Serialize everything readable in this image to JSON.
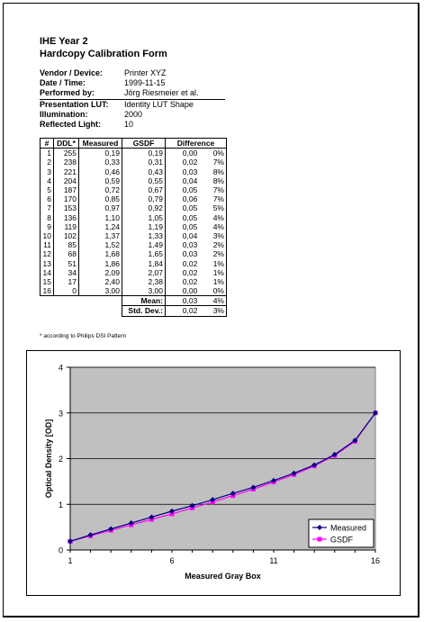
{
  "title_line1": "IHE Year 2",
  "title_line2": "Hardcopy Calibration Form",
  "info": [
    {
      "label": "Vendor / Device:",
      "value": "Printer XYZ"
    },
    {
      "label": "Date / Time:",
      "value": "1999-11-15"
    },
    {
      "label": "Performed by:",
      "value": "Jörg Riesmeier et al."
    },
    {
      "label": "Presentation LUT:",
      "value": "Identity LUT Shape"
    },
    {
      "label": "Illumination:",
      "value": "2000"
    },
    {
      "label": "Reflected Light:",
      "value": "10"
    }
  ],
  "table": {
    "headers": [
      "#",
      "DDL*",
      "Measured",
      "GSDF",
      "Difference"
    ],
    "rows": [
      [
        "1",
        "255",
        "0,19",
        "0,19",
        "0,00",
        "0%"
      ],
      [
        "2",
        "238",
        "0,33",
        "0,31",
        "0,02",
        "7%"
      ],
      [
        "3",
        "221",
        "0,46",
        "0,43",
        "0,03",
        "8%"
      ],
      [
        "4",
        "204",
        "0,59",
        "0,55",
        "0,04",
        "8%"
      ],
      [
        "5",
        "187",
        "0,72",
        "0,67",
        "0,05",
        "7%"
      ],
      [
        "6",
        "170",
        "0,85",
        "0,79",
        "0,06",
        "7%"
      ],
      [
        "7",
        "153",
        "0,97",
        "0,92",
        "0,05",
        "5%"
      ],
      [
        "8",
        "136",
        "1,10",
        "1,05",
        "0,05",
        "4%"
      ],
      [
        "9",
        "119",
        "1,24",
        "1,19",
        "0,05",
        "4%"
      ],
      [
        "10",
        "102",
        "1,37",
        "1,33",
        "0,04",
        "3%"
      ],
      [
        "11",
        "85",
        "1,52",
        "1,49",
        "0,03",
        "2%"
      ],
      [
        "12",
        "68",
        "1,68",
        "1,65",
        "0,03",
        "2%"
      ],
      [
        "13",
        "51",
        "1,86",
        "1,84",
        "0,02",
        "1%"
      ],
      [
        "14",
        "34",
        "2,09",
        "2,07",
        "0,02",
        "1%"
      ],
      [
        "15",
        "17",
        "2,40",
        "2,38",
        "0,02",
        "1%"
      ],
      [
        "16",
        "0",
        "3,00",
        "3,00",
        "0,00",
        "0%"
      ]
    ],
    "mean_label": "Mean:",
    "mean_value": "0,03",
    "mean_pct": "4%",
    "std_label": "Std. Dev.:",
    "std_value": "0,02",
    "std_pct": "3%"
  },
  "footnote": "* according to Philips DSI Pattern",
  "chart_data": {
    "type": "line",
    "x": [
      1,
      2,
      3,
      4,
      5,
      6,
      7,
      8,
      9,
      10,
      11,
      12,
      13,
      14,
      15,
      16
    ],
    "series": [
      {
        "name": "Measured",
        "color": "#000080",
        "marker": "diamond",
        "values": [
          0.19,
          0.33,
          0.46,
          0.59,
          0.72,
          0.85,
          0.97,
          1.1,
          1.24,
          1.37,
          1.52,
          1.68,
          1.86,
          2.09,
          2.4,
          3.0
        ]
      },
      {
        "name": "GSDF",
        "color": "#ff00ff",
        "marker": "square",
        "values": [
          0.19,
          0.31,
          0.43,
          0.55,
          0.67,
          0.79,
          0.92,
          1.05,
          1.19,
          1.33,
          1.49,
          1.65,
          1.84,
          2.07,
          2.38,
          3.0
        ]
      }
    ],
    "xlabel": "Measured Gray Box",
    "ylabel": "Optical Density [OD]",
    "xlim": [
      1,
      16
    ],
    "ylim": [
      0,
      4
    ],
    "xticks": [
      "1",
      "6",
      "11",
      "16"
    ],
    "yticks": [
      "0",
      "1",
      "2",
      "3",
      "4"
    ],
    "grid": "horizontal",
    "plot_background": "#c0c0c0",
    "legend": "bottom-right"
  }
}
